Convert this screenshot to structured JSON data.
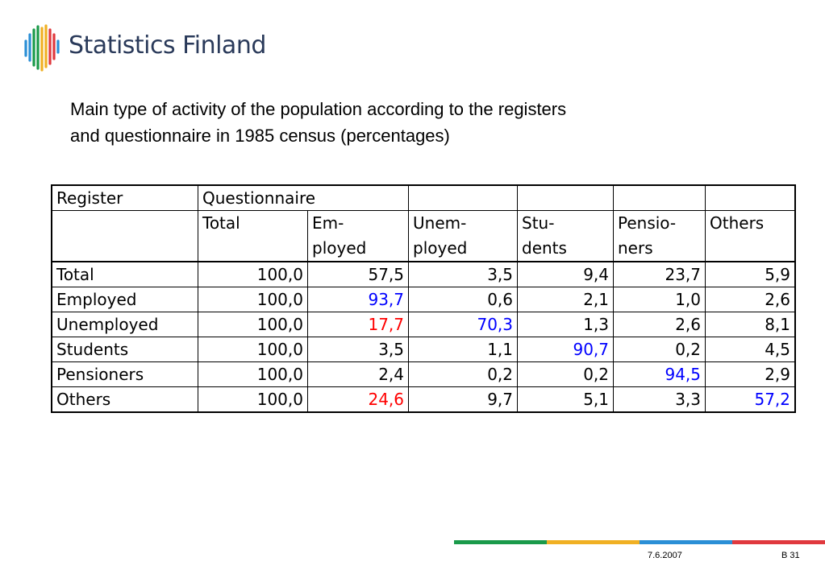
{
  "logo": {
    "text": "Statistics Finland",
    "icon": "statistics-finland-bars-logo"
  },
  "title": {
    "line1": "Main type of activity of the population according to the registers",
    "line2": "and questionnaire in 1985 census (percentages)"
  },
  "table": {
    "header1": {
      "register": "Register",
      "questionnaire": "Questionnaire"
    },
    "header2": {
      "total": "Total",
      "employed_a": "Em-",
      "employed_b": "ployed",
      "unemployed_a": "Unem-",
      "unemployed_b": "ployed",
      "students_a": "Stu-",
      "students_b": "dents",
      "pensioners_a": "Pensio-",
      "pensioners_b": "ners",
      "others": "Others"
    },
    "rows": [
      {
        "label": "Total",
        "values": [
          "100,0",
          "57,5",
          "3,5",
          "9,4",
          "23,7",
          "5,9"
        ],
        "colors": [
          "#000000",
          "#000000",
          "#000000",
          "#000000",
          "#000000",
          "#000000"
        ]
      },
      {
        "label": "Employed",
        "values": [
          "100,0",
          "93,7",
          "0,6",
          "2,1",
          "1,0",
          "2,6"
        ],
        "colors": [
          "#000000",
          "#0000ff",
          "#000000",
          "#000000",
          "#000000",
          "#000000"
        ]
      },
      {
        "label": "Unemployed",
        "values": [
          "100,0",
          "17,7",
          "70,3",
          "1,3",
          "2,6",
          "8,1"
        ],
        "colors": [
          "#000000",
          "#ff0000",
          "#0000ff",
          "#000000",
          "#000000",
          "#000000"
        ]
      },
      {
        "label": "Students",
        "values": [
          "100,0",
          "3,5",
          "1,1",
          "90,7",
          "0,2",
          "4,5"
        ],
        "colors": [
          "#000000",
          "#000000",
          "#000000",
          "#0000ff",
          "#000000",
          "#000000"
        ]
      },
      {
        "label": "Pensioners",
        "values": [
          "100,0",
          "2,4",
          "0,2",
          "0,2",
          "94,5",
          "2,9"
        ],
        "colors": [
          "#000000",
          "#000000",
          "#000000",
          "#000000",
          "#0000ff",
          "#000000"
        ]
      },
      {
        "label": "Others",
        "values": [
          "100,0",
          "24,6",
          "9,7",
          "5,1",
          "3,3",
          "57,2"
        ],
        "colors": [
          "#000000",
          "#ff0000",
          "#000000",
          "#000000",
          "#000000",
          "#0000ff"
        ]
      }
    ]
  },
  "footer": {
    "date": "7.6.2007",
    "page": "B 31",
    "bar_colors": [
      "#1a9a4a",
      "#f0b023",
      "#2b8fd6",
      "#e0393e"
    ]
  }
}
